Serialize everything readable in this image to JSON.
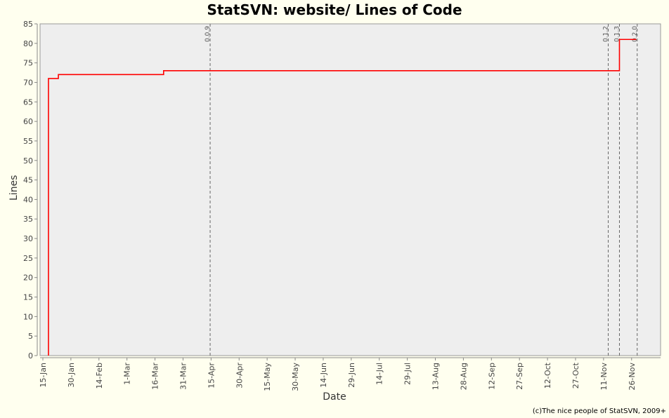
{
  "chart_data": {
    "type": "line",
    "title": "StatSVN: website/ Lines of Code",
    "xlabel": "Date",
    "ylabel": "Lines",
    "ylim": [
      0,
      85
    ],
    "yticks": [
      0,
      5,
      10,
      15,
      20,
      25,
      30,
      35,
      40,
      45,
      50,
      55,
      60,
      65,
      70,
      75,
      80,
      85
    ],
    "xlim_days": [
      13.5,
      345.5
    ],
    "xticks": [
      {
        "label": "15-Jan",
        "day": 15
      },
      {
        "label": "30-Jan",
        "day": 30
      },
      {
        "label": "14-Feb",
        "day": 45
      },
      {
        "label": "1-Mar",
        "day": 60
      },
      {
        "label": "16-Mar",
        "day": 75
      },
      {
        "label": "31-Mar",
        "day": 90
      },
      {
        "label": "15-Apr",
        "day": 105
      },
      {
        "label": "30-Apr",
        "day": 120
      },
      {
        "label": "15-May",
        "day": 135
      },
      {
        "label": "30-May",
        "day": 150
      },
      {
        "label": "14-Jun",
        "day": 165
      },
      {
        "label": "29-Jun",
        "day": 180
      },
      {
        "label": "14-Jul",
        "day": 195
      },
      {
        "label": "29-Jul",
        "day": 210
      },
      {
        "label": "13-Aug",
        "day": 225
      },
      {
        "label": "28-Aug",
        "day": 240
      },
      {
        "label": "12-Sep",
        "day": 255
      },
      {
        "label": "27-Sep",
        "day": 270
      },
      {
        "label": "12-Oct",
        "day": 285
      },
      {
        "label": "27-Oct",
        "day": 300
      },
      {
        "label": "11-Nov",
        "day": 315
      },
      {
        "label": "26-Nov",
        "day": 330
      }
    ],
    "series": [
      {
        "name": "Lines of Code",
        "color": "#ff0000",
        "step": true,
        "points": [
          {
            "day": 18.0,
            "value": 0
          },
          {
            "day": 18.0,
            "value": 71
          },
          {
            "day": 23.3,
            "value": 72
          },
          {
            "day": 79.6,
            "value": 73
          },
          {
            "day": 323.5,
            "value": 81
          },
          {
            "day": 332.5,
            "value": 81
          }
        ]
      }
    ],
    "markers": [
      {
        "label": "0.0.9",
        "day": 104.5
      },
      {
        "label": "0.1.2",
        "day": 317.5
      },
      {
        "label": "0.1.3",
        "day": 323.5
      },
      {
        "label": "0.2.0",
        "day": 333.0
      }
    ],
    "grid": false,
    "colors": {
      "background": "#ffffef",
      "plot": "#eeeeee",
      "line": "#ff0000",
      "marker": "#666666"
    }
  },
  "footer": {
    "credit": "(c)The nice people of StatSVN, 2009+"
  }
}
